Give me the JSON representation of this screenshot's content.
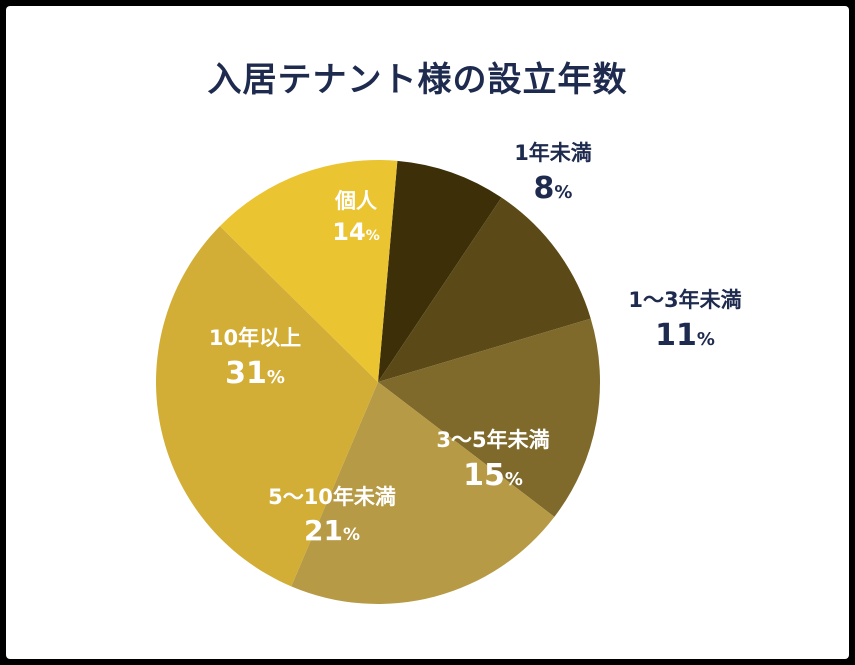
{
  "colors": {
    "title": "#1e2b4f",
    "outside_label": "#1e2b4f",
    "inside_label": "#ffffff",
    "border": "#000000",
    "background": "#ffffff"
  },
  "chart_data": {
    "type": "pie",
    "title": "入居テナント様の設立年数",
    "start_angle_deg": 5,
    "direction": "clockwise",
    "slices": [
      {
        "label": "1年未満",
        "value": 8,
        "value_label": "8",
        "color": "#3d3009",
        "label_position": "outside"
      },
      {
        "label": "1〜3年未満",
        "value": 11,
        "value_label": "11",
        "color": "#5b4a17",
        "label_position": "outside"
      },
      {
        "label": "3〜5年未満",
        "value": 15,
        "value_label": "15",
        "color": "#7f6a2c",
        "label_position": "inside"
      },
      {
        "label": "5〜10年未満",
        "value": 21,
        "value_label": "21",
        "color": "#b69a45",
        "label_position": "inside"
      },
      {
        "label": "10年以上",
        "value": 31,
        "value_label": "31",
        "color": "#d2ae36",
        "label_position": "inside"
      },
      {
        "label": "個人",
        "value": 14,
        "value_label": "14",
        "color": "#ebc431",
        "label_position": "inside"
      }
    ],
    "unit": "%"
  }
}
